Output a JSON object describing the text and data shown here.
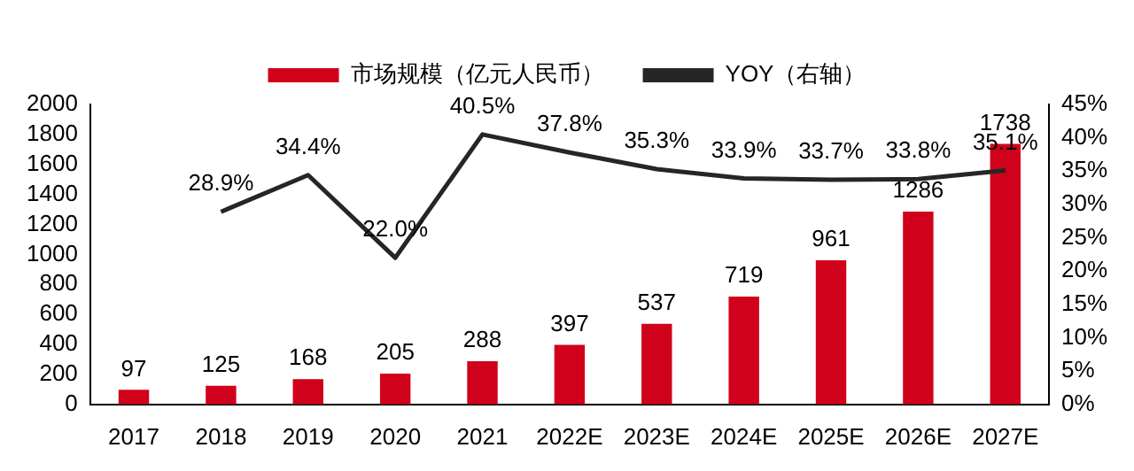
{
  "chart_data": {
    "type": "bar",
    "categories": [
      "2017",
      "2018",
      "2019",
      "2020",
      "2021",
      "2022E",
      "2023E",
      "2024E",
      "2025E",
      "2026E",
      "2027E"
    ],
    "series": [
      {
        "name": "市场规模（亿元人民币）",
        "color": "#d0021b",
        "values": [
          97,
          125,
          168,
          205,
          288,
          397,
          537,
          719,
          961,
          1286,
          1738
        ],
        "value_labels": [
          "97",
          "125",
          "168",
          "205",
          "288",
          "397",
          "537",
          "719",
          "961",
          "1286",
          "1738"
        ]
      },
      {
        "name": "YOY（右轴）",
        "type": "line",
        "axis": "y2",
        "color": "#262626",
        "values": [
          null,
          28.9,
          34.4,
          22.0,
          40.5,
          37.8,
          35.3,
          33.9,
          33.7,
          33.8,
          35.1
        ],
        "value_labels": [
          null,
          "28.9%",
          "34.4%",
          "22.0%",
          "40.5%",
          "37.8%",
          "35.3%",
          "33.9%",
          "33.7%",
          "33.8%",
          "35.1%"
        ]
      }
    ],
    "ylim": [
      0,
      2000
    ],
    "yticks": [
      0,
      200,
      400,
      600,
      800,
      1000,
      1200,
      1400,
      1600,
      1800,
      2000
    ],
    "y2lim": [
      0,
      45
    ],
    "y2ticks": [
      {
        "value": 0,
        "label": "0%"
      },
      {
        "value": 5,
        "label": "5%"
      },
      {
        "value": 10,
        "label": "10%"
      },
      {
        "value": 15,
        "label": "15%"
      },
      {
        "value": 20,
        "label": "20%"
      },
      {
        "value": 25,
        "label": "25%"
      },
      {
        "value": 30,
        "label": "30%"
      },
      {
        "value": 35,
        "label": "35%"
      },
      {
        "value": 40,
        "label": "40%"
      },
      {
        "value": 45,
        "label": "45%"
      }
    ],
    "legend": "top",
    "grid": false,
    "marker": "none"
  }
}
